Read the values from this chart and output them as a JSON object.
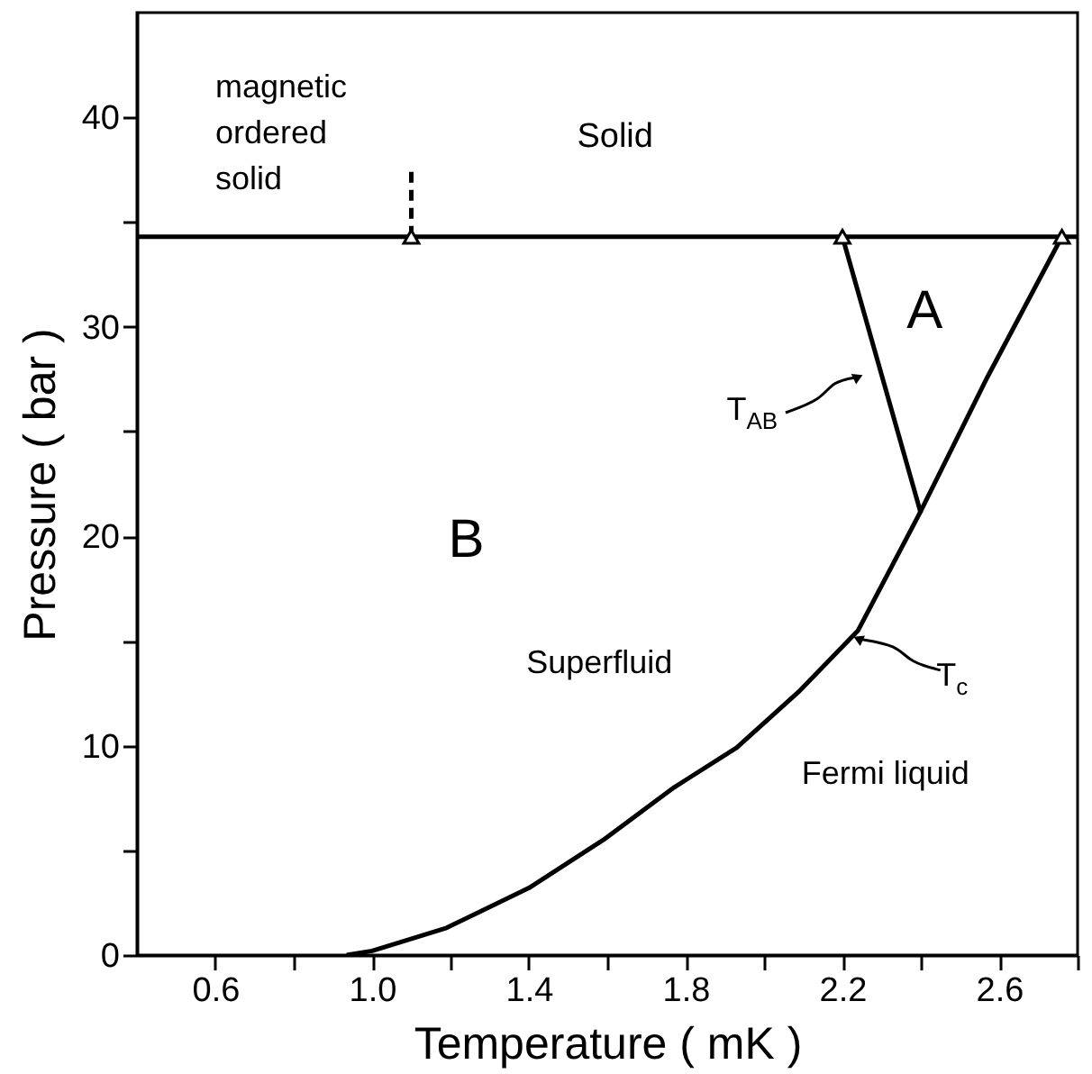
{
  "chart_data": {
    "type": "line",
    "xlabel": "Temperature ( mK )",
    "ylabel": "Pressure ( bar )",
    "xlim": [
      0.4,
      2.8
    ],
    "ylim": [
      0,
      45
    ],
    "xticks": [
      0.6,
      {
        "value": 0.8,
        "label": null
      },
      {
        "value": 1,
        "label": "1.0"
      },
      {
        "value": 1.2,
        "label": null
      },
      1.4,
      {
        "value": 1.6,
        "label": null
      },
      1.8,
      {
        "value": 2,
        "label": null
      },
      2.2,
      {
        "value": 2.4,
        "label": null
      },
      2.6,
      {
        "value": 2.8,
        "label": null
      }
    ],
    "yticks": [
      0,
      {
        "value": 5,
        "label": null
      },
      10,
      {
        "value": 15,
        "label": null
      },
      20,
      {
        "value": 25,
        "label": null
      },
      30,
      {
        "value": 35,
        "label": null
      },
      40
    ],
    "grid": false,
    "series": [
      {
        "color": "#000000",
        "x": [
          0.4,
          2.8
        ],
        "values": [
          34.3,
          34.3
        ]
      },
      {
        "color": "#000000",
        "x": [
          0.935,
          1.0,
          1.19,
          1.4,
          1.59,
          1.77,
          1.93,
          2.09,
          2.24,
          2.4,
          2.57,
          2.76
        ],
        "values": [
          0,
          0.2,
          1.3,
          3.2,
          5.5,
          8.0,
          9.9,
          12.6,
          15.5,
          21.2,
          27.6,
          34.3
        ]
      },
      {
        "color": "#000000",
        "x": [
          2.2,
          2.4
        ],
        "values": [
          34.3,
          21.1
        ]
      },
      {
        "color": "#000000",
        "line_style": "dashed",
        "x": [
          1.1,
          1.1
        ],
        "values": [
          34.3,
          37.7
        ]
      },
      {
        "type": "scatter",
        "color": "#000000",
        "marker": "triangle",
        "x": [
          1.1,
          2.2,
          2.76
        ],
        "values": [
          34.3,
          34.3,
          34.3
        ]
      }
    ],
    "annotations": [
      "magnetic ordered solid",
      "Solid",
      "A",
      "B",
      "Superfluid",
      "Fermi liquid",
      {
        "text": "T$_{AB}$",
        "x": 2.24,
        "y": 27.6
      },
      {
        "text": "T$_{c}$",
        "x": 2.24,
        "y": 15.1
      }
    ]
  }
}
